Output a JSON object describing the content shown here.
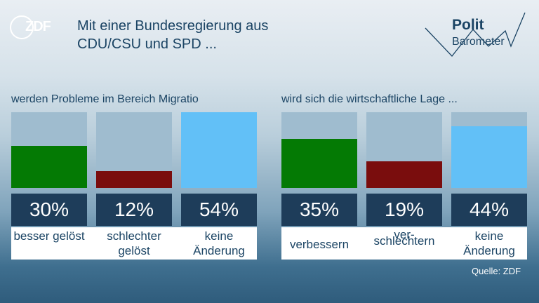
{
  "brand": {
    "logo_text": "ZDF"
  },
  "headline": {
    "line1": "Mit einer Bundesregierung aus",
    "line2": "CDU/CSU und SPD ..."
  },
  "politbarometer": {
    "line1": "Polit",
    "line2": "Barometer"
  },
  "colors": {
    "green": "#047a04",
    "red": "#7a0d0d",
    "blue": "#62c0f7",
    "bar_bg": "#9fbccf",
    "value_box": "#1e3d5a"
  },
  "source": "Quelle: ZDF",
  "chart_data": [
    {
      "type": "bar",
      "title": "werden Probleme im Bereich Migratio",
      "categories": [
        "besser gelöst",
        "schlechter gelöst",
        "keine Änderung"
      ],
      "value_labels": [
        "30%",
        "12%",
        "54%"
      ],
      "values": [
        30,
        12,
        54
      ],
      "colors": [
        "#047a04",
        "#7a0d0d",
        "#62c0f7"
      ],
      "ylim": [
        0,
        54
      ]
    },
    {
      "type": "bar",
      "title": "wird sich die wirtschaftliche Lage ...",
      "categories": [
        "verbessern",
        "ver-\nschlechtern",
        "keine Änderung"
      ],
      "value_labels": [
        "35%",
        "19%",
        "44%"
      ],
      "values": [
        35,
        19,
        44
      ],
      "colors": [
        "#047a04",
        "#7a0d0d",
        "#62c0f7"
      ],
      "ylim": [
        0,
        54
      ]
    }
  ]
}
